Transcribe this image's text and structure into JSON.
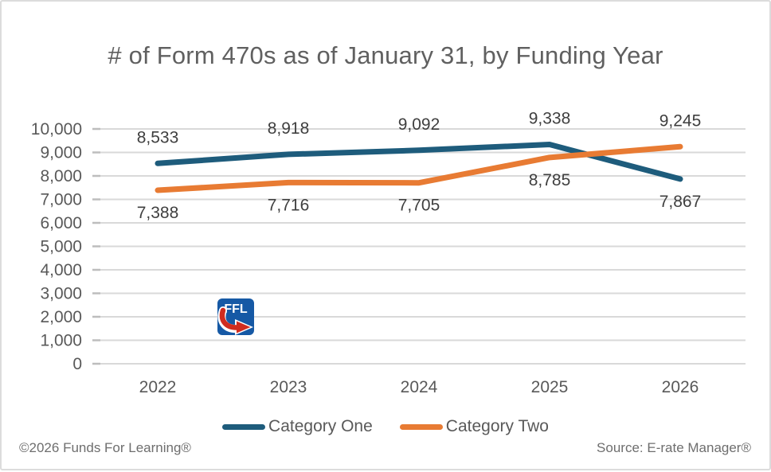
{
  "title": "# of Form 470s as of January 31, by Funding Year",
  "chart_data": {
    "type": "line",
    "categories": [
      "2022",
      "2023",
      "2024",
      "2025",
      "2026"
    ],
    "series": [
      {
        "name": "Category One",
        "color": "#1e5c7c",
        "values": [
          8533,
          8918,
          9092,
          9338,
          7867
        ]
      },
      {
        "name": "Category Two",
        "color": "#e87b33",
        "values": [
          7388,
          7716,
          7705,
          8785,
          9245
        ]
      }
    ],
    "title": "# of Form 470s as of January 31, by Funding Year",
    "xlabel": "",
    "ylabel": "",
    "ylim": [
      0,
      10000
    ],
    "ytick_step": 1000,
    "grid": "horizontal",
    "legend_position": "bottom",
    "value_labels": true
  },
  "logo": {
    "text": "FFL"
  },
  "footer": {
    "left": "©2026 Funds For Learning®",
    "right": "Source: E-rate Manager®"
  },
  "colors": {
    "gridline": "#d9d9d9",
    "tick": "#bdbdbd",
    "axis_text": "#595959",
    "data_label": "#3f3f3f",
    "title_text": "#606060",
    "legend_text": "#595959",
    "footer_text": "#6e6e6e",
    "logo_blue": "#1659a5",
    "logo_red": "#d02c1f"
  }
}
